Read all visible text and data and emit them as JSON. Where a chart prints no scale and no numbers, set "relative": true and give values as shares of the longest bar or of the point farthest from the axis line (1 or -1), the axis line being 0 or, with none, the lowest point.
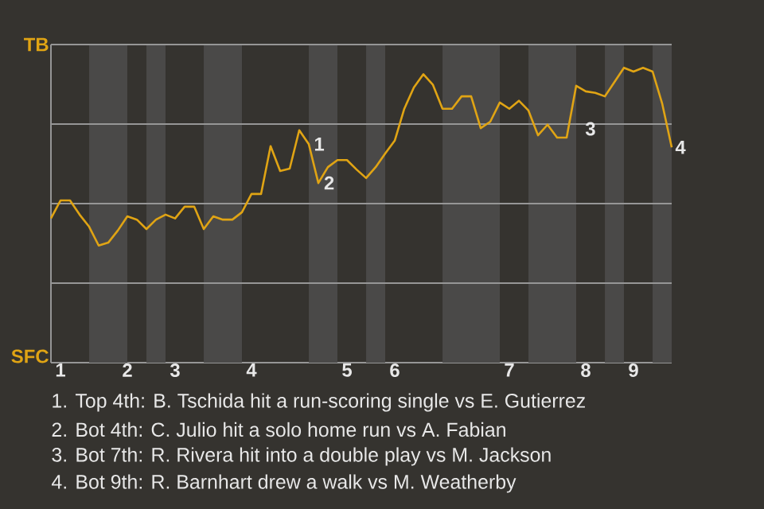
{
  "chart_data": {
    "type": "line",
    "relative": true,
    "categories": [
      null,
      "1",
      null,
      null,
      null,
      null,
      null,
      null,
      "2",
      null,
      null,
      null,
      null,
      "3",
      null,
      null,
      null,
      null,
      null,
      null,
      null,
      "4",
      null,
      null,
      null,
      null,
      null,
      null,
      null,
      null,
      null,
      "5",
      null,
      null,
      null,
      null,
      "6",
      null,
      null,
      null,
      null,
      null,
      null,
      null,
      null,
      null,
      null,
      null,
      "7",
      null,
      null,
      null,
      null,
      null,
      null,
      null,
      "8",
      null,
      null,
      null,
      null,
      "9",
      null,
      null,
      null,
      null
    ],
    "grid": "y",
    "series": [
      {
        "color": "#e0a414",
        "values": [
          0.489,
          0.55,
          0.55,
          0.502,
          0.461,
          0.397,
          0.407,
          0.448,
          0.496,
          0.485,
          0.453,
          0.485,
          0.502,
          0.489,
          0.529,
          0.529,
          0.453,
          0.496,
          0.485,
          0.485,
          0.51,
          0.572,
          0.572,
          0.734,
          0.65,
          0.658,
          0.788,
          0.741,
          0.609,
          0.663,
          0.687,
          0.687,
          0.655,
          0.626,
          0.663,
          0.709,
          0.753,
          0.861,
          0.933,
          0.978,
          0.942,
          0.861,
          0.861,
          0.903,
          0.903,
          0.795,
          0.817,
          0.882,
          0.861,
          0.888,
          0.855,
          0.771,
          0.807,
          0.763,
          0.763,
          0.939,
          0.92,
          0.915,
          0.903,
          0.951,
          1,
          0.987,
          1,
          0.987,
          0.879,
          0.73
        ]
      }
    ],
    "annotations": [
      "1",
      "2",
      "3",
      "4",
      "TB",
      "SFC",
      "1. Top 4th: B. Tschida hit a run-scoring single vs E. Gutierrez",
      "2. Bot 4th: C. Julio hit a solo home run vs A. Fabian",
      "3. Bot 7th: R. Rivera hit into a double play vs M. Jackson",
      "4. Bot 9th: R. Barnhart drew a walk vs M. Weatherby"
    ]
  }
}
